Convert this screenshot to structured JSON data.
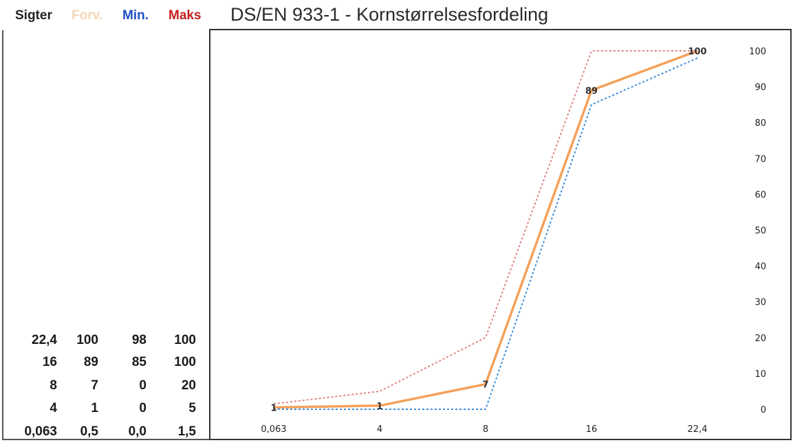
{
  "header": {
    "sigter": "Sigter",
    "forv": "Forv.",
    "min": "Min.",
    "maks": "Maks",
    "title": "DS/EN 933-1  -  Kornstørrelsesfordeling"
  },
  "table": {
    "rows": [
      {
        "sigte": "22,4",
        "forv": "100",
        "min": "98",
        "maks": "100"
      },
      {
        "sigte": "16",
        "forv": "89",
        "min": "85",
        "maks": "100"
      },
      {
        "sigte": "8",
        "forv": "7",
        "min": "0",
        "maks": "20"
      },
      {
        "sigte": "4",
        "forv": "1",
        "min": "0",
        "maks": "5"
      },
      {
        "sigte": "0,063",
        "forv": "0,5",
        "min": "0,0",
        "maks": "1,5"
      }
    ]
  },
  "colors": {
    "forv": "#f5a05a",
    "min": "#3a8ee0",
    "maks": "#e08585",
    "forv_header": "#f3d7b5",
    "min_header": "#1f4fc8",
    "maks_header": "#c41e1e"
  },
  "chart_data": {
    "type": "line",
    "categories": [
      "0,063",
      "4",
      "8",
      "16",
      "22,4"
    ],
    "series": [
      {
        "name": "Forv.",
        "values": [
          0.5,
          1,
          7,
          89,
          100
        ],
        "style": "solid",
        "labels": [
          "1",
          "1",
          "7",
          "89",
          "100"
        ]
      },
      {
        "name": "Min.",
        "values": [
          0.0,
          0,
          0,
          85,
          98
        ],
        "style": "dotted"
      },
      {
        "name": "Maks",
        "values": [
          1.5,
          5,
          20,
          100,
          100
        ],
        "style": "dotted"
      }
    ],
    "yticks": [
      0,
      10,
      20,
      30,
      40,
      50,
      60,
      70,
      80,
      90,
      100
    ],
    "ylim": [
      0,
      100
    ],
    "y_axis_side": "right",
    "grid": false,
    "title": "DS/EN 933-1  -  Kornstørrelsesfordeling"
  }
}
